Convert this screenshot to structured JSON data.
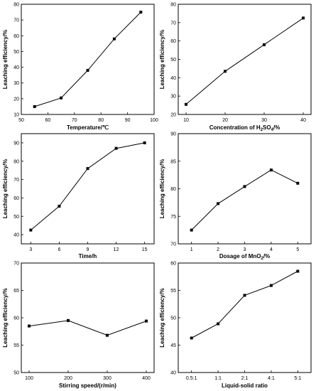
{
  "chart_data": [
    {
      "type": "line",
      "xlabel": "Temperature/℃",
      "ylabel": "Leaching efficiency/%",
      "x": [
        55,
        65,
        75,
        85,
        95
      ],
      "values": [
        15,
        20.5,
        38,
        58,
        75
      ],
      "xlim": [
        50,
        100
      ],
      "ylim": [
        10,
        80
      ],
      "xticks": [
        "50",
        "60",
        "70",
        "80",
        "90",
        "100"
      ],
      "yticks": [
        "10",
        "20",
        "30",
        "40",
        "50",
        "60",
        "70",
        "80"
      ],
      "grid": false
    },
    {
      "type": "line",
      "xlabel": "Concentration of H2SO4/%",
      "ylabel": "Leaching efficiency/%",
      "x": [
        10,
        20,
        30,
        40
      ],
      "values": [
        25.5,
        43.5,
        58,
        72.5
      ],
      "xlim": [
        8,
        42
      ],
      "ylim": [
        20,
        80
      ],
      "xticks": [
        "10",
        "20",
        "30",
        "40"
      ],
      "yticks": [
        "20",
        "30",
        "40",
        "50",
        "60",
        "70",
        "80"
      ],
      "grid": false
    },
    {
      "type": "line",
      "xlabel": "Time/h",
      "ylabel": "Leaching efficiency/%",
      "x": [
        3,
        6,
        9,
        12,
        15
      ],
      "values": [
        42.5,
        55.5,
        76,
        87,
        90
      ],
      "xlim": [
        2,
        16
      ],
      "ylim": [
        35,
        95
      ],
      "xticks": [
        "3",
        "6",
        "9",
        "12",
        "15"
      ],
      "yticks": [
        "40",
        "50",
        "60",
        "70",
        "80",
        "90"
      ],
      "grid": false
    },
    {
      "type": "line",
      "xlabel": "Dosage of MnO2/%",
      "ylabel": "Leaching efficiency/%",
      "x": [
        1,
        2,
        3,
        4,
        5
      ],
      "values": [
        72.5,
        77.3,
        80.4,
        83.4,
        81
      ],
      "xlim": [
        0.5,
        5.5
      ],
      "ylim": [
        70,
        90
      ],
      "xticks": [
        "1",
        "2",
        "3",
        "4",
        "5"
      ],
      "yticks": [
        "70",
        "75",
        "80",
        "85",
        "90"
      ],
      "grid": false
    },
    {
      "type": "line",
      "xlabel": "Stirring speed/(r/min)",
      "ylabel": "Leaching efficiency/%",
      "x": [
        100,
        200,
        300,
        400
      ],
      "values": [
        58.5,
        59.5,
        56.8,
        59.4
      ],
      "xlim": [
        80,
        420
      ],
      "ylim": [
        50,
        70
      ],
      "xticks": [
        "100",
        "200",
        "300",
        "400"
      ],
      "yticks": [
        "50",
        "55",
        "60",
        "65",
        "70"
      ],
      "grid": false
    },
    {
      "type": "line",
      "xlabel": "Liquid-solid ratio",
      "ylabel": "Leaching efficiency/%",
      "categories": [
        "0.5:1",
        "1:1",
        "2:1",
        "4:1",
        "5:1"
      ],
      "values": [
        46.3,
        48.9,
        54.1,
        55.9,
        58.5
      ],
      "ylim": [
        40,
        60
      ],
      "yticks": [
        "40",
        "45",
        "50",
        "55",
        "60"
      ],
      "grid": false
    }
  ]
}
